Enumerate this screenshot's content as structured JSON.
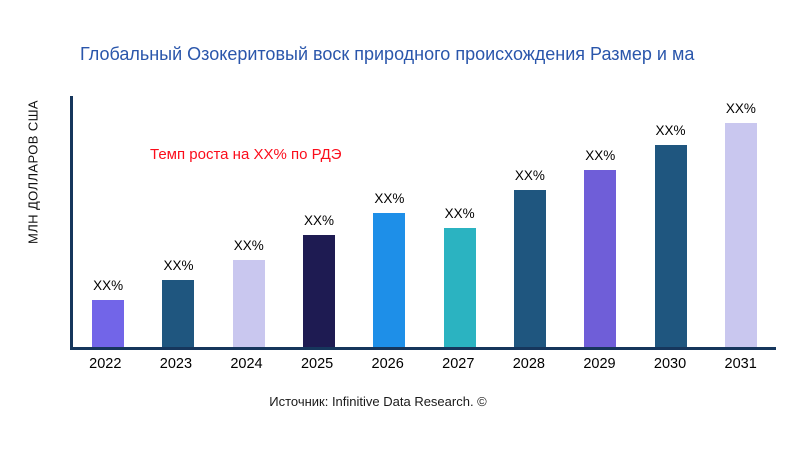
{
  "header": {
    "title": "Глобальный Озокеритовый воск природного происхождения Размер и ма"
  },
  "source": "Источник: Infinitive Data Research. ©",
  "chart_data": {
    "type": "bar",
    "title": "Глобальный Озокеритовый воск природного происхождения Размер и ма",
    "title_color": "#2a56ab",
    "ylabel": "МЛН ДОЛЛАРОВ США",
    "xlabel": "",
    "categories": [
      "2022",
      "2023",
      "2024",
      "2025",
      "2026",
      "2027",
      "2028",
      "2029",
      "2030",
      "2031"
    ],
    "values": [
      21,
      30,
      39,
      50,
      60,
      53,
      70,
      79,
      90,
      100
    ],
    "bar_labels": [
      "XX%",
      "XX%",
      "XX%",
      "XX%",
      "XX%",
      "XX%",
      "XX%",
      "XX%",
      "XX%",
      "XX%"
    ],
    "bar_colors": [
      "#7265e8",
      "#1f567f",
      "#c9c7ef",
      "#1e1b52",
      "#1e8fe8",
      "#2bb3c1",
      "#1f567f",
      "#6f5ed8",
      "#1f567f",
      "#c9c7ef"
    ],
    "ylim": [
      0,
      112
    ],
    "grid": false,
    "legend": false,
    "annotation": "Темп роста на XX% по РДЭ",
    "annotation_color": "#fb0d1b",
    "axis_color": "#16365c"
  }
}
